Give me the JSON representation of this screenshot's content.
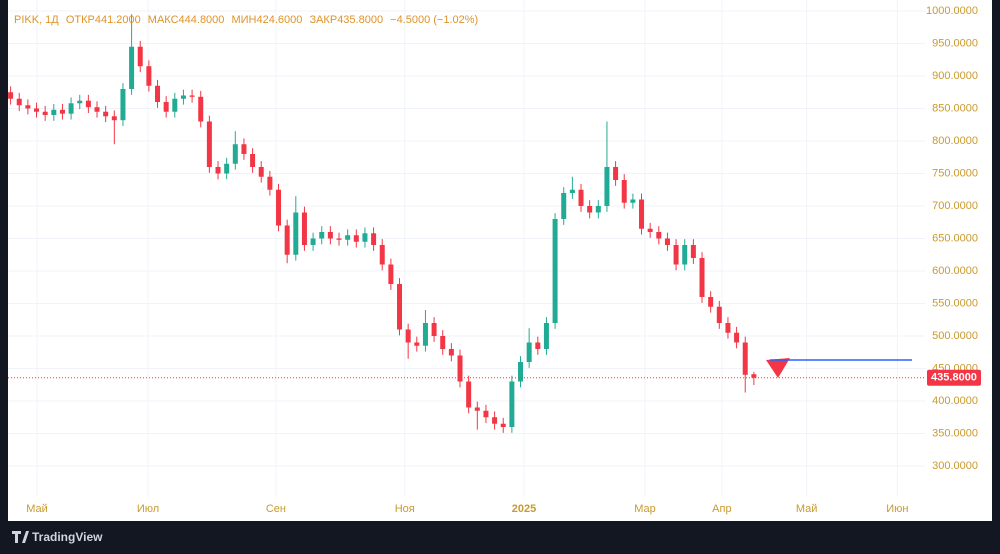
{
  "legend": {
    "symbol": "PIKK, 1Д",
    "open_label": "ОТКР",
    "open": "441.2000",
    "high_label": "МАКС",
    "high": "444.8000",
    "low_label": "МИН",
    "low": "424.6000",
    "close_label": "ЗАКР",
    "close": "435.8000",
    "change": "−4.5000 (−1.02%)"
  },
  "chart_data": {
    "type": "candlestick",
    "xlim": [
      -0.3,
      105.8
    ],
    "xticks": [
      {
        "value": 3.06,
        "label": "Май"
      },
      {
        "value": 15.9,
        "label": "Июл"
      },
      {
        "value": 30.7,
        "label": "Сен"
      },
      {
        "value": 45.6,
        "label": "Ноя"
      },
      {
        "value": 59.4,
        "label": "2025"
      },
      {
        "value": 73.4,
        "label": "Мар"
      },
      {
        "value": 82.3,
        "label": "Апр"
      },
      {
        "value": 92.1,
        "label": "Май"
      },
      {
        "value": 102.6,
        "label": "Июн"
      }
    ],
    "ylim": [
      252.3,
      1016.9
    ],
    "yticks": [
      {
        "value": 300,
        "label": "300.0000"
      },
      {
        "value": 350,
        "label": "350.0000"
      },
      {
        "value": 400,
        "label": "400.0000"
      },
      {
        "value": 450,
        "label": "450.0000"
      },
      {
        "value": 500,
        "label": "500.0000"
      },
      {
        "value": 550,
        "label": "550.0000"
      },
      {
        "value": 600,
        "label": "600.0000"
      },
      {
        "value": 650,
        "label": "650.0000"
      },
      {
        "value": 700,
        "label": "700.0000"
      },
      {
        "value": 750,
        "label": "750.0000"
      },
      {
        "value": 800,
        "label": "800.0000"
      },
      {
        "value": 850,
        "label": "850.0000"
      },
      {
        "value": 900,
        "label": "900.0000"
      },
      {
        "value": 950,
        "label": "950.0000"
      },
      {
        "value": 1000,
        "label": "1000.0000"
      }
    ],
    "open": [
      875,
      865,
      855,
      850,
      845,
      840,
      848,
      842,
      858,
      862,
      852,
      845,
      838,
      832,
      880,
      945,
      915,
      885,
      860,
      845,
      865,
      870,
      868,
      830,
      760,
      750,
      765,
      795,
      780,
      760,
      745,
      725,
      670,
      625,
      690,
      640,
      650,
      660,
      650,
      648,
      655,
      645,
      658,
      640,
      610,
      580,
      510,
      490,
      485,
      520,
      500,
      480,
      470,
      430,
      390,
      385,
      375,
      365,
      360,
      430,
      460,
      490,
      480,
      520,
      680,
      720,
      725,
      700,
      690,
      700,
      760,
      740,
      705,
      710,
      665,
      660,
      650,
      640,
      610,
      640,
      620,
      560,
      545,
      520,
      505,
      490,
      441.2
    ],
    "high": [
      884,
      874,
      864,
      859,
      854,
      857,
      857,
      867,
      871,
      871,
      861,
      854,
      847,
      889,
      995,
      954,
      924,
      894,
      869,
      874,
      879,
      879,
      877,
      839,
      769,
      774,
      815,
      804,
      789,
      769,
      754,
      734,
      679,
      715,
      699,
      659,
      669,
      669,
      659,
      664,
      664,
      667,
      667,
      649,
      619,
      589,
      519,
      499,
      540,
      529,
      509,
      489,
      479,
      439,
      399,
      394,
      384,
      374,
      439,
      469,
      512,
      499,
      529,
      689,
      729,
      745,
      734,
      709,
      709,
      830,
      769,
      749,
      719,
      719,
      674,
      669,
      659,
      649,
      649,
      649,
      629,
      569,
      554,
      529,
      514,
      499,
      444.8
    ],
    "low": [
      856,
      846,
      841,
      836,
      831,
      831,
      833,
      833,
      849,
      843,
      836,
      829,
      795,
      823,
      871,
      906,
      876,
      851,
      836,
      836,
      856,
      859,
      821,
      751,
      741,
      741,
      756,
      771,
      751,
      736,
      716,
      661,
      612,
      616,
      631,
      631,
      641,
      641,
      639,
      639,
      636,
      636,
      631,
      601,
      571,
      501,
      465,
      476,
      476,
      491,
      471,
      461,
      421,
      381,
      356,
      366,
      356,
      351,
      351,
      421,
      451,
      471,
      471,
      511,
      671,
      711,
      691,
      681,
      681,
      691,
      731,
      696,
      696,
      656,
      651,
      641,
      631,
      601,
      601,
      611,
      551,
      536,
      511,
      496,
      481,
      413,
      424.6
    ],
    "close": [
      865,
      855,
      850,
      845,
      840,
      848,
      842,
      858,
      862,
      852,
      845,
      838,
      832,
      880,
      945,
      915,
      885,
      860,
      845,
      865,
      870,
      868,
      830,
      760,
      750,
      765,
      795,
      780,
      760,
      745,
      725,
      670,
      625,
      690,
      640,
      650,
      660,
      650,
      648,
      655,
      645,
      658,
      640,
      610,
      580,
      510,
      490,
      485,
      520,
      500,
      480,
      470,
      430,
      390,
      385,
      375,
      365,
      360,
      430,
      460,
      490,
      480,
      520,
      680,
      720,
      725,
      700,
      690,
      700,
      760,
      740,
      705,
      710,
      665,
      660,
      650,
      640,
      610,
      640,
      620,
      560,
      545,
      520,
      505,
      490,
      440.3,
      435.8
    ],
    "up_color": "#22ab94",
    "down_color": "#f23645",
    "grid": true,
    "last_price_label": "435.8000",
    "horizontal_line": {
      "value": 463,
      "color": "#2962ff"
    }
  },
  "footer": {
    "brand": "TradingView"
  }
}
